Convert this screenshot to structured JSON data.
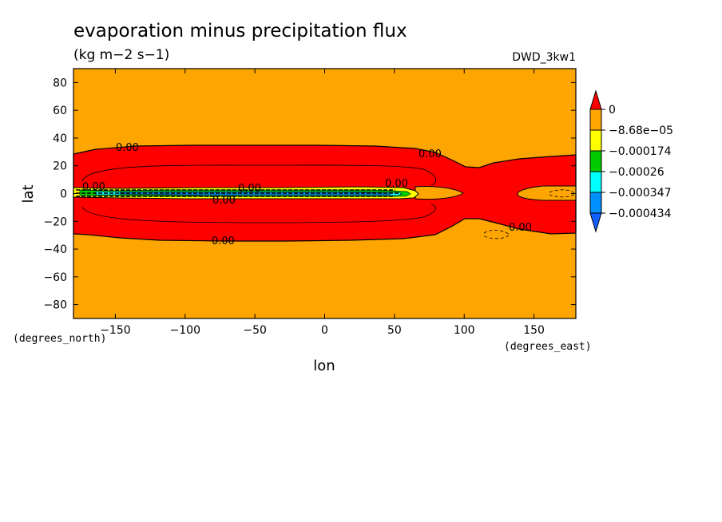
{
  "chart_data": {
    "type": "contour",
    "title": "evaporation minus precipitation flux",
    "units": "(kg m−2 s−1)",
    "dataset": "DWD_3kw1",
    "xlabel": "lon",
    "ylabel": "lat",
    "x_unit_label": "(degrees_east)",
    "y_unit_label": "(degrees_north)",
    "xlim": [
      -180,
      180
    ],
    "ylim": [
      -90,
      90
    ],
    "xticks": [
      -150,
      -100,
      -50,
      0,
      50,
      100,
      150
    ],
    "yticks": [
      80,
      60,
      40,
      20,
      0,
      -20,
      -40,
      -60,
      -80
    ],
    "contour_labels": [
      "0.00",
      "0.00",
      "0.00",
      "0.00",
      "0.00",
      "0.00",
      "0.00",
      "0.00"
    ],
    "colorbar": {
      "levels": [
        "0",
        "−8.68e−05",
        "−0.000174",
        "−0.00026",
        "−0.000347",
        "−0.000434"
      ],
      "colors": [
        "#ff0000",
        "#ffa500",
        "#ffff00",
        "#00cc00",
        "#00ffff",
        "#0090ff",
        "#1060ff"
      ]
    }
  }
}
